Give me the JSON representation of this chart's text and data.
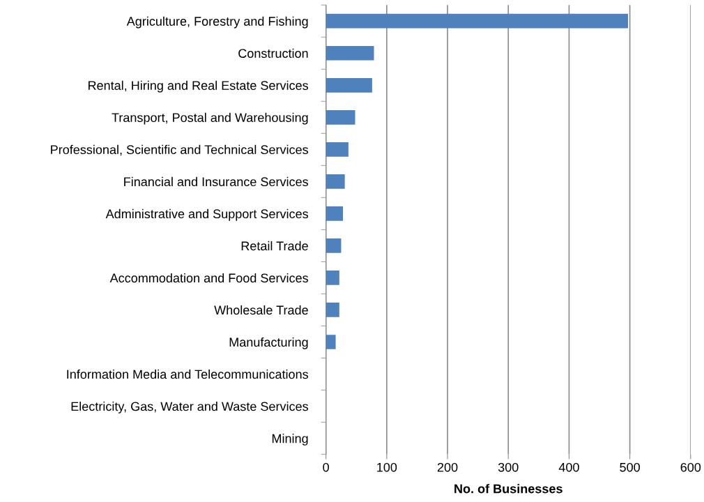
{
  "chart_data": {
    "type": "bar",
    "orientation": "horizontal",
    "xlabel": "No. of Businesses",
    "categories": [
      "Agriculture, Forestry and Fishing",
      "Construction",
      "Rental, Hiring and Real Estate Services",
      "Transport, Postal and Warehousing",
      "Professional, Scientific and Technical Services",
      "Financial and Insurance Services",
      "Administrative and Support Services",
      "Retail Trade",
      "Accommodation and Food Services",
      "Wholesale Trade",
      "Manufacturing",
      "Information Media and Telecommunications",
      "Electricity, Gas, Water and Waste Services",
      "Mining"
    ],
    "values": [
      497,
      79,
      76,
      48,
      37,
      31,
      28,
      25,
      22,
      22,
      16,
      0,
      0,
      0
    ],
    "color": "#4f81bd",
    "xlim": [
      0,
      600
    ],
    "xticks": [
      0,
      100,
      200,
      300,
      400,
      500,
      600
    ],
    "grid": "x",
    "legend": false
  }
}
